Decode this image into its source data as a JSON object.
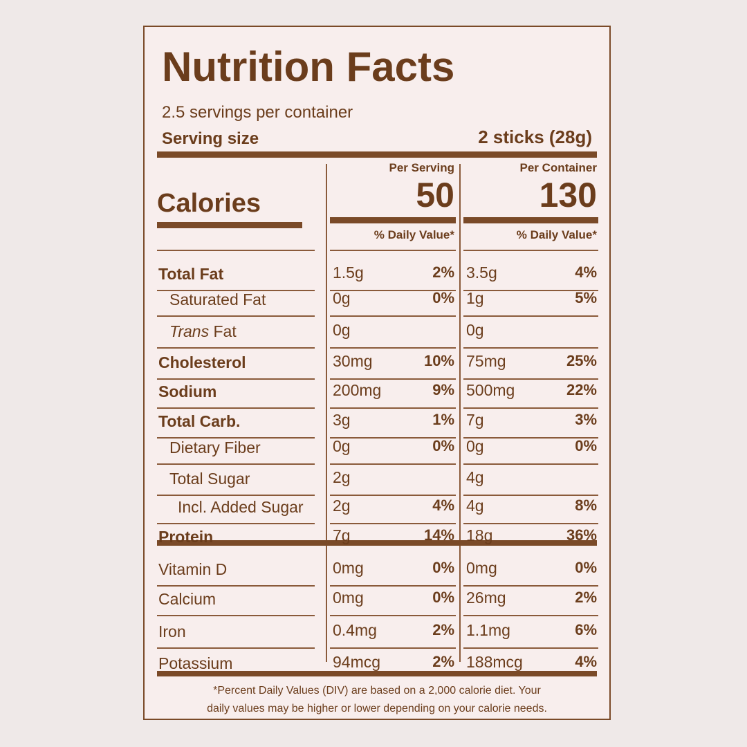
{
  "title": "Nutrition Facts",
  "servings": "2.5 servings per container",
  "serving_size": {
    "label": "Serving size",
    "value": "2 sticks (28g)"
  },
  "columns": [
    {
      "header": "Per Serving",
      "calories": "50",
      "dv_header": "% Daily Value*"
    },
    {
      "header": "Per Container",
      "calories": "130",
      "dv_header": "% Daily Value*"
    }
  ],
  "calories_label": "Calories",
  "rows": [
    {
      "label": "Total Fat",
      "bold": true,
      "indent": 0,
      "values": [
        "1.5g",
        "2%",
        "3.5g",
        "4%"
      ]
    },
    {
      "label": "Saturated Fat",
      "bold": false,
      "indent": 1,
      "values": [
        "0g",
        "0%",
        "1g",
        "5%"
      ]
    },
    {
      "label_italic": "Trans",
      "label": "Fat",
      "bold": false,
      "indent": 1,
      "values": [
        "0g",
        null,
        "0g",
        null
      ]
    },
    {
      "label": "Cholesterol",
      "bold": true,
      "indent": 0,
      "values": [
        "30mg",
        "10%",
        "75mg",
        "25%"
      ]
    },
    {
      "label": "Sodium",
      "bold": true,
      "indent": 0,
      "values": [
        "200mg",
        "9%",
        "500mg",
        "22%"
      ]
    },
    {
      "label": "Total Carb.",
      "bold": true,
      "indent": 0,
      "values": [
        "3g",
        "1%",
        "7g",
        "3%"
      ]
    },
    {
      "label": "Dietary Fiber",
      "bold": false,
      "indent": 1,
      "values": [
        "0g",
        "0%",
        "0g",
        "0%"
      ]
    },
    {
      "label": "Total Sugar",
      "bold": false,
      "indent": 1,
      "values": [
        "2g",
        null,
        "4g",
        null
      ]
    },
    {
      "label": "Incl. Added Sugar",
      "bold": false,
      "indent": 2,
      "values": [
        "2g",
        "4%",
        "4g",
        "8%"
      ]
    },
    {
      "label": "Protein",
      "bold": true,
      "indent": 0,
      "values": [
        "7g",
        "14%",
        "18g",
        "36%"
      ]
    },
    {
      "label": "Vitamin D",
      "bold": false,
      "indent": 0,
      "values": [
        "0mg",
        "0%",
        "0mg",
        "0%"
      ]
    },
    {
      "label": "Calcium",
      "bold": false,
      "indent": 0,
      "values": [
        "0mg",
        "0%",
        "26mg",
        "2%"
      ]
    },
    {
      "label": "Iron",
      "bold": false,
      "indent": 0,
      "values": [
        "0.4mg",
        "2%",
        "1.1mg",
        "6%"
      ]
    },
    {
      "label": "Potassium",
      "bold": false,
      "indent": 0,
      "values": [
        "94mcg",
        "2%",
        "188mcg",
        "4%"
      ]
    }
  ],
  "footnote": [
    "*Percent Daily Values (DIV) are based on a 2,000 calorie diet. Your",
    "daily values may be higher or lower depending on your calorie needs."
  ]
}
